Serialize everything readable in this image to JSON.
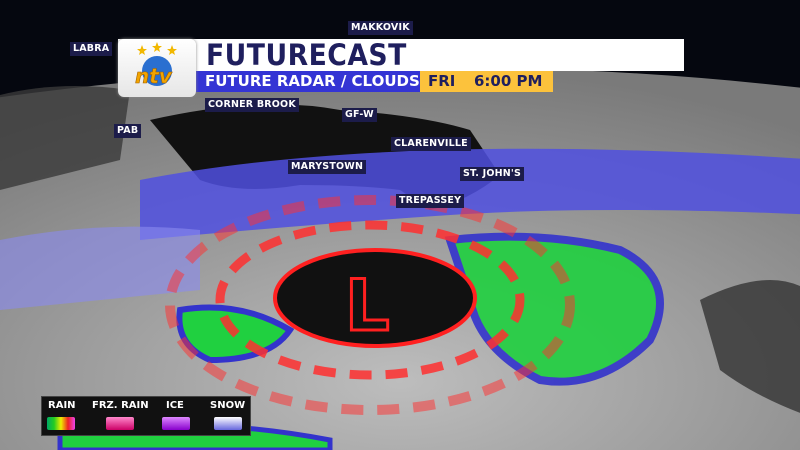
{
  "header": {
    "title": "FUTURECAST",
    "subtitle": "FUTURE RADAR / CLOUDS",
    "day": "FRI",
    "time": "6:00 PM",
    "logo_text": "ntv"
  },
  "cities": [
    "LABRA",
    "MAKKOVIK",
    "CORNER BROOK",
    "PAB",
    "GF-W",
    "CLARENVILLE",
    "MARYSTOWN",
    "ST. JOHN'S",
    "TREPASSEY"
  ],
  "low_pressure_symbol": "L",
  "legend": {
    "items": [
      "RAIN",
      "FRZ. RAIN",
      "ICE",
      "SNOW"
    ]
  },
  "colors": {
    "title": "#1f1f5e",
    "subtitle_bg": "#3434d4",
    "time_bg": "#fcc23c",
    "low_red": "#ff2020",
    "snow": "#5050e0",
    "rain": "#20d040"
  }
}
